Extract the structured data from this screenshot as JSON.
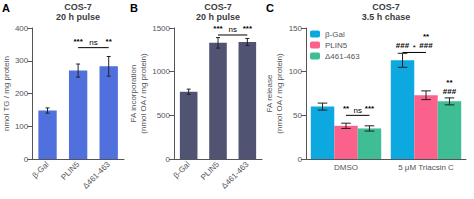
{
  "chart_data": [
    {
      "type": "bar",
      "panel_label": "A",
      "title": "COS-7\n20 h pulse",
      "ylabel": "nmol TG / mg protein",
      "categories": [
        "β-Gal",
        "PLIN5",
        "Δ461-463"
      ],
      "values": [
        148,
        270,
        283
      ],
      "errors": [
        8,
        20,
        30
      ],
      "ylim": [
        0,
        400
      ],
      "yticks": [
        0,
        100,
        200,
        300,
        400
      ],
      "grid": false,
      "annotations": [
        {
          "category": "PLIN5",
          "text": "***"
        },
        {
          "category": "Δ461-463",
          "text": "**"
        }
      ],
      "brackets": [
        {
          "from": "PLIN5",
          "to": "Δ461-463",
          "y": 340,
          "text": "ns"
        }
      ]
    },
    {
      "type": "bar",
      "panel_label": "B",
      "title": "COS-7\n20 h pulse",
      "ylabel": "FA incorporation\n(nmol OA / mg protein)",
      "categories": [
        "β-Gal",
        "PLIN5",
        "Δ461-463"
      ],
      "values": [
        770,
        1330,
        1340
      ],
      "errors": [
        30,
        60,
        40
      ],
      "ylim": [
        0,
        1500
      ],
      "yticks": [
        0,
        500,
        1000,
        1500
      ],
      "grid": false,
      "annotations": [
        {
          "category": "PLIN5",
          "text": "***"
        },
        {
          "category": "Δ461-463",
          "text": "***"
        }
      ],
      "brackets": [
        {
          "from": "PLIN5",
          "to": "Δ461-463",
          "y": 1420,
          "text": "ns"
        }
      ]
    },
    {
      "type": "bar",
      "panel_label": "C",
      "title": "COS-7\n3.5 h chase",
      "ylabel": "FA release\n(nmol OA / mg protein)",
      "categories": [
        "DMSO",
        "5 μM Triacsin C"
      ],
      "series": [
        {
          "name": "β-Gal",
          "values": [
            60,
            113
          ],
          "errors": [
            4,
            8
          ]
        },
        {
          "name": "PLIN5",
          "values": [
            38,
            73
          ],
          "errors": [
            3,
            5
          ]
        },
        {
          "name": "Δ461-463",
          "values": [
            35,
            66
          ],
          "errors": [
            3,
            4
          ]
        }
      ],
      "ylim": [
        0,
        150
      ],
      "yticks": [
        0,
        50,
        100,
        150
      ],
      "grid": false,
      "legend": "upper left",
      "annotations": [
        {
          "category": "DMSO",
          "series": "PLIN5",
          "text": "**"
        },
        {
          "category": "DMSO",
          "series": "Δ461-463",
          "text": "***"
        },
        {
          "category": "5 μM Triacsin C",
          "series": "β-Gal",
          "text": "###"
        },
        {
          "category": "5 μM Triacsin C",
          "series": "PLIN5",
          "text": "**\n###"
        },
        {
          "category": "5 μM Triacsin C",
          "series": "Δ461-463",
          "text": "**\n###"
        }
      ],
      "brackets": [
        {
          "category": "DMSO",
          "from": "PLIN5",
          "to": "Δ461-463",
          "y": 50,
          "text": "ns"
        },
        {
          "category": "5 μM Triacsin C",
          "from": "β-Gal",
          "to": "PLIN5",
          "y": 122,
          "text": "*"
        }
      ]
    }
  ]
}
